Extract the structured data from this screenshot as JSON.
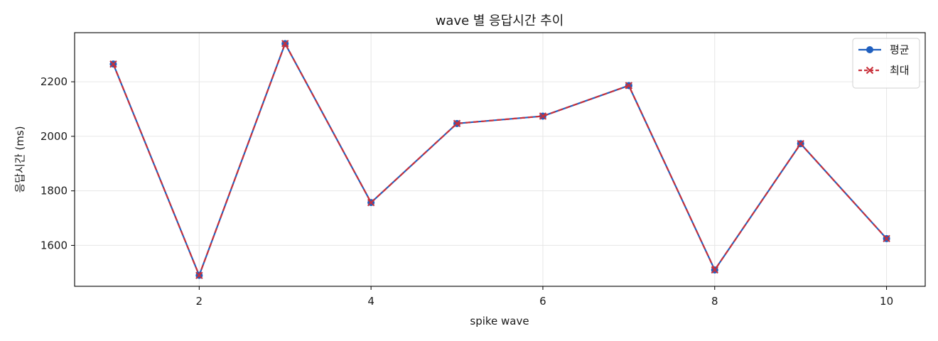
{
  "chart_data": {
    "type": "line",
    "title": "wave 별 응답시간 추이",
    "xlabel": "spike wave",
    "ylabel": "응답시간 (ms)",
    "x": [
      1,
      2,
      3,
      4,
      5,
      6,
      7,
      8,
      9,
      10
    ],
    "xlim": [
      0.55,
      10.45
    ],
    "ylim": [
      1450,
      2380
    ],
    "xticks": [
      2,
      4,
      6,
      8,
      10
    ],
    "yticks": [
      1600,
      1800,
      2000,
      2200
    ],
    "grid": true,
    "legend_position": "top-right",
    "series": [
      {
        "name": "평균",
        "color": "#1f5fbf",
        "marker": "circle",
        "linestyle": "solid",
        "values": [
          2265,
          1490,
          2340,
          1757,
          2047,
          2074,
          2186,
          1510,
          1973,
          1625
        ]
      },
      {
        "name": "최대",
        "color": "#c8303a",
        "marker": "x",
        "linestyle": "dashed",
        "values": [
          2265,
          1490,
          2340,
          1757,
          2047,
          2074,
          2186,
          1510,
          1973,
          1625
        ]
      }
    ]
  }
}
